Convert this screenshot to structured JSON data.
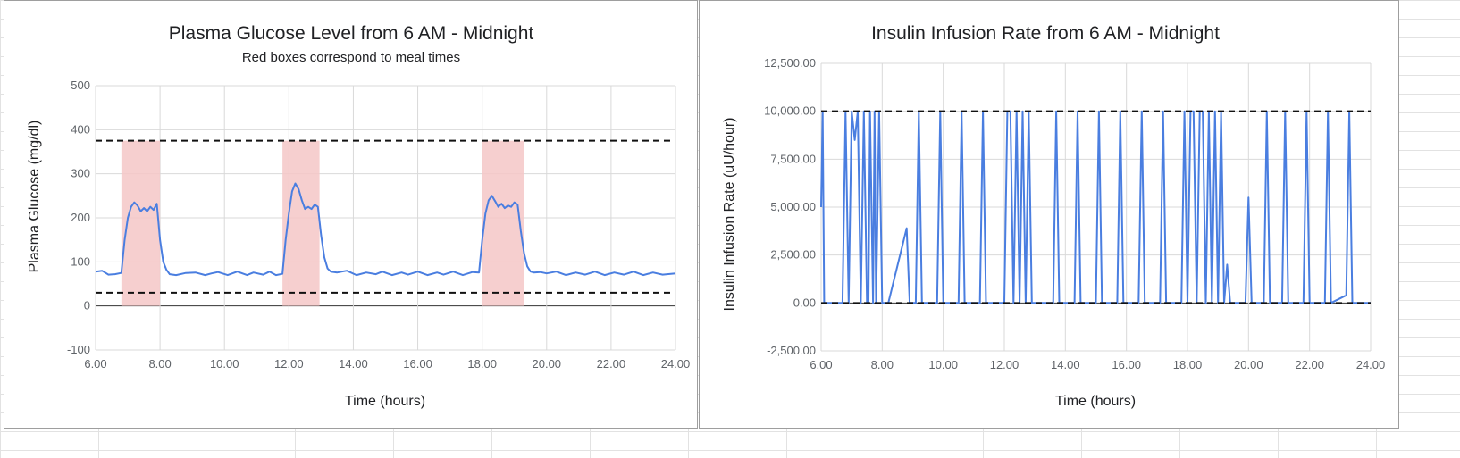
{
  "chart_data": [
    {
      "type": "line",
      "title": "Plasma Glucose Level from 6 AM - Midnight",
      "subtitle": "Red boxes correspond to meal times",
      "xlabel": "Time (hours)",
      "ylabel": "Plasma Glucose (mg/dl)",
      "xlim": [
        6,
        24
      ],
      "ylim": [
        -100,
        500
      ],
      "x_ticks": [
        "6.00",
        "8.00",
        "10.00",
        "12.00",
        "14.00",
        "16.00",
        "18.00",
        "20.00",
        "22.00",
        "24.00"
      ],
      "y_ticks": [
        "-100",
        "0",
        "100",
        "200",
        "300",
        "400",
        "500"
      ],
      "grid": true,
      "series": [
        {
          "color": "#4a7ee0",
          "x": [
            6.0,
            6.2,
            6.4,
            6.6,
            6.8,
            6.9,
            7.0,
            7.1,
            7.2,
            7.3,
            7.4,
            7.5,
            7.6,
            7.7,
            7.8,
            7.9,
            8.0,
            8.1,
            8.2,
            8.3,
            8.5,
            8.8,
            9.1,
            9.4,
            9.6,
            9.8,
            10.1,
            10.4,
            10.7,
            10.9,
            11.2,
            11.4,
            11.6,
            11.8,
            11.9,
            12.0,
            12.1,
            12.2,
            12.3,
            12.4,
            12.5,
            12.6,
            12.7,
            12.8,
            12.9,
            13.0,
            13.1,
            13.2,
            13.3,
            13.5,
            13.8,
            14.1,
            14.4,
            14.7,
            14.9,
            15.2,
            15.5,
            15.7,
            16.0,
            16.3,
            16.6,
            16.8,
            17.1,
            17.4,
            17.7,
            17.9,
            18.0,
            18.1,
            18.2,
            18.3,
            18.4,
            18.5,
            18.6,
            18.7,
            18.8,
            18.9,
            19.0,
            19.1,
            19.2,
            19.3,
            19.4,
            19.5,
            19.6,
            19.8,
            20.0,
            20.3,
            20.6,
            20.9,
            21.2,
            21.5,
            21.8,
            22.1,
            22.4,
            22.7,
            23.0,
            23.3,
            23.6,
            24.0
          ],
          "values": [
            78,
            80,
            71,
            72,
            75,
            150,
            200,
            225,
            235,
            228,
            215,
            222,
            215,
            225,
            218,
            232,
            150,
            100,
            82,
            72,
            70,
            75,
            76,
            70,
            74,
            77,
            70,
            78,
            70,
            76,
            71,
            78,
            70,
            73,
            150,
            210,
            260,
            278,
            265,
            240,
            220,
            225,
            220,
            230,
            225,
            160,
            110,
            85,
            78,
            76,
            80,
            70,
            76,
            72,
            78,
            70,
            76,
            71,
            78,
            70,
            76,
            71,
            78,
            70,
            77,
            76,
            150,
            210,
            240,
            250,
            238,
            225,
            232,
            222,
            228,
            225,
            235,
            230,
            170,
            120,
            90,
            78,
            76,
            77,
            74,
            78,
            70,
            76,
            71,
            78,
            70,
            76,
            71,
            78,
            70,
            76,
            71,
            74
          ]
        }
      ],
      "thresholds": [
        375,
        30
      ],
      "meal_windows": [
        [
          6.8,
          8.0
        ],
        [
          11.8,
          12.95
        ],
        [
          18.0,
          19.3
        ]
      ]
    },
    {
      "type": "line",
      "title": "Insulin Infusion Rate from 6 AM - Midnight",
      "xlabel": "Time (hours)",
      "ylabel": "Insulin Infusion Rate (uU/hour)",
      "xlim": [
        6,
        24
      ],
      "ylim": [
        -2500,
        12500
      ],
      "x_ticks": [
        "6.00",
        "8.00",
        "10.00",
        "12.00",
        "14.00",
        "16.00",
        "18.00",
        "20.00",
        "22.00",
        "24.00"
      ],
      "y_ticks": [
        "-2,500.00",
        "0.00",
        "2,500.00",
        "5,000.00",
        "7,500.00",
        "10,000.00",
        "12,500.00"
      ],
      "grid": true,
      "series": [
        {
          "color": "#4a7ee0",
          "x": [
            6.0,
            6.05,
            6.1,
            6.15,
            6.2,
            6.7,
            6.8,
            6.9,
            7.0,
            7.1,
            7.2,
            7.3,
            7.4,
            7.5,
            7.55,
            7.6,
            7.7,
            7.75,
            7.8,
            7.9,
            8.0,
            8.1,
            8.2,
            8.8,
            8.9,
            9.1,
            9.2,
            9.3,
            9.8,
            9.9,
            10.0,
            10.5,
            10.6,
            10.7,
            11.2,
            11.3,
            11.4,
            11.9,
            12.0,
            12.1,
            12.2,
            12.3,
            12.4,
            12.5,
            12.6,
            12.7,
            12.8,
            12.9,
            13.0,
            13.6,
            13.7,
            13.8,
            14.3,
            14.4,
            14.5,
            15.0,
            15.1,
            15.2,
            15.7,
            15.8,
            15.9,
            16.4,
            16.5,
            16.6,
            17.1,
            17.2,
            17.3,
            17.8,
            17.9,
            18.0,
            18.1,
            18.2,
            18.3,
            18.4,
            18.5,
            18.6,
            18.7,
            18.8,
            18.9,
            19.0,
            19.1,
            19.2,
            19.3,
            19.4,
            19.5,
            19.9,
            20.0,
            20.1,
            20.5,
            20.6,
            20.7,
            21.1,
            21.2,
            21.3,
            21.8,
            21.9,
            22.0,
            22.5,
            22.6,
            22.7,
            23.2,
            23.3,
            23.4,
            24.0
          ],
          "values": [
            5000,
            10000,
            0,
            0,
            0,
            0,
            10000,
            0,
            10000,
            8500,
            10000,
            0,
            10000,
            0,
            0,
            10000,
            0,
            10000,
            0,
            10000,
            0,
            0,
            0,
            3900,
            0,
            0,
            10000,
            0,
            0,
            10000,
            0,
            0,
            10000,
            0,
            0,
            10000,
            0,
            0,
            0,
            10000,
            10000,
            0,
            10000,
            0,
            10000,
            0,
            10000,
            0,
            0,
            0,
            10000,
            0,
            0,
            10000,
            0,
            0,
            10000,
            0,
            0,
            10000,
            0,
            0,
            10000,
            0,
            0,
            10000,
            0,
            0,
            10000,
            0,
            10000,
            10000,
            0,
            10000,
            10000,
            0,
            10000,
            0,
            10000,
            0,
            10000,
            0,
            2000,
            0,
            0,
            0,
            5500,
            0,
            0,
            10000,
            0,
            0,
            10000,
            0,
            0,
            10000,
            0,
            0,
            10000,
            0,
            400,
            10000,
            0,
            0
          ]
        }
      ],
      "thresholds": [
        10000,
        0
      ]
    }
  ]
}
